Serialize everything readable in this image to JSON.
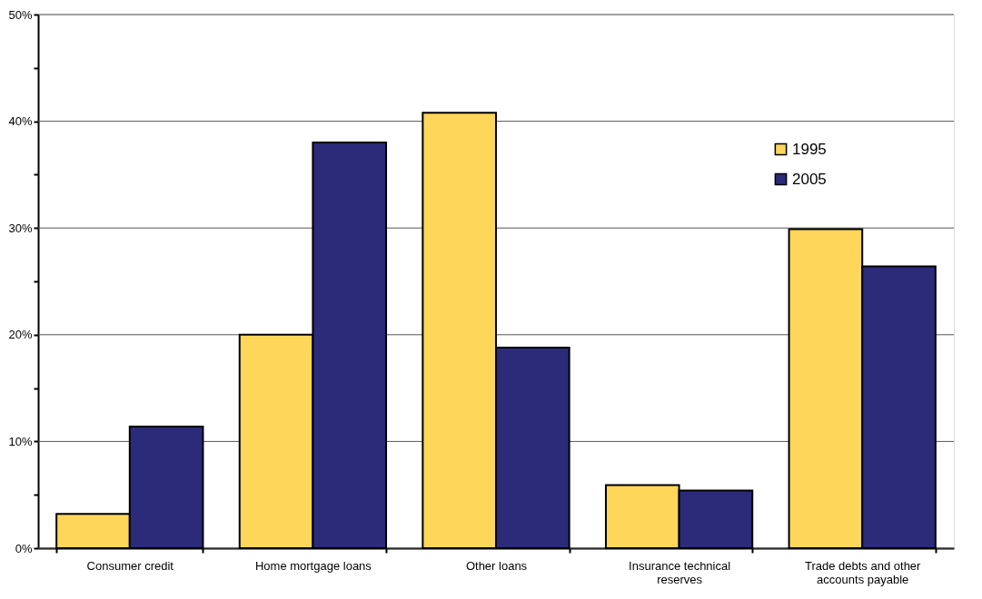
{
  "chart_data": {
    "type": "bar",
    "categories": [
      "Consumer credit",
      "Home mortgage loans",
      "Other loans",
      "Insurance technical reserves",
      "Trade debts and other accounts payable"
    ],
    "series": [
      {
        "name": "1995",
        "color": "#fdd65a",
        "values": [
          3.2,
          20.0,
          40.8,
          5.9,
          29.9
        ]
      },
      {
        "name": "2005",
        "color": "#2b2b7a",
        "values": [
          11.4,
          38.0,
          18.8,
          5.4,
          26.4
        ]
      }
    ],
    "ylim": [
      0,
      50
    ],
    "yticks": [
      {
        "value": 0,
        "label": "0%"
      },
      {
        "value": 5,
        "label": null
      },
      {
        "value": 10,
        "label": "10%"
      },
      {
        "value": 15,
        "label": null
      },
      {
        "value": 20,
        "label": "20%"
      },
      {
        "value": 25,
        "label": null
      },
      {
        "value": 30,
        "label": "30%"
      },
      {
        "value": 35,
        "label": null
      },
      {
        "value": 40,
        "label": "40%"
      },
      {
        "value": 45,
        "label": null
      },
      {
        "value": 50,
        "label": "50%"
      }
    ],
    "grid": "y",
    "legend": "top right"
  }
}
